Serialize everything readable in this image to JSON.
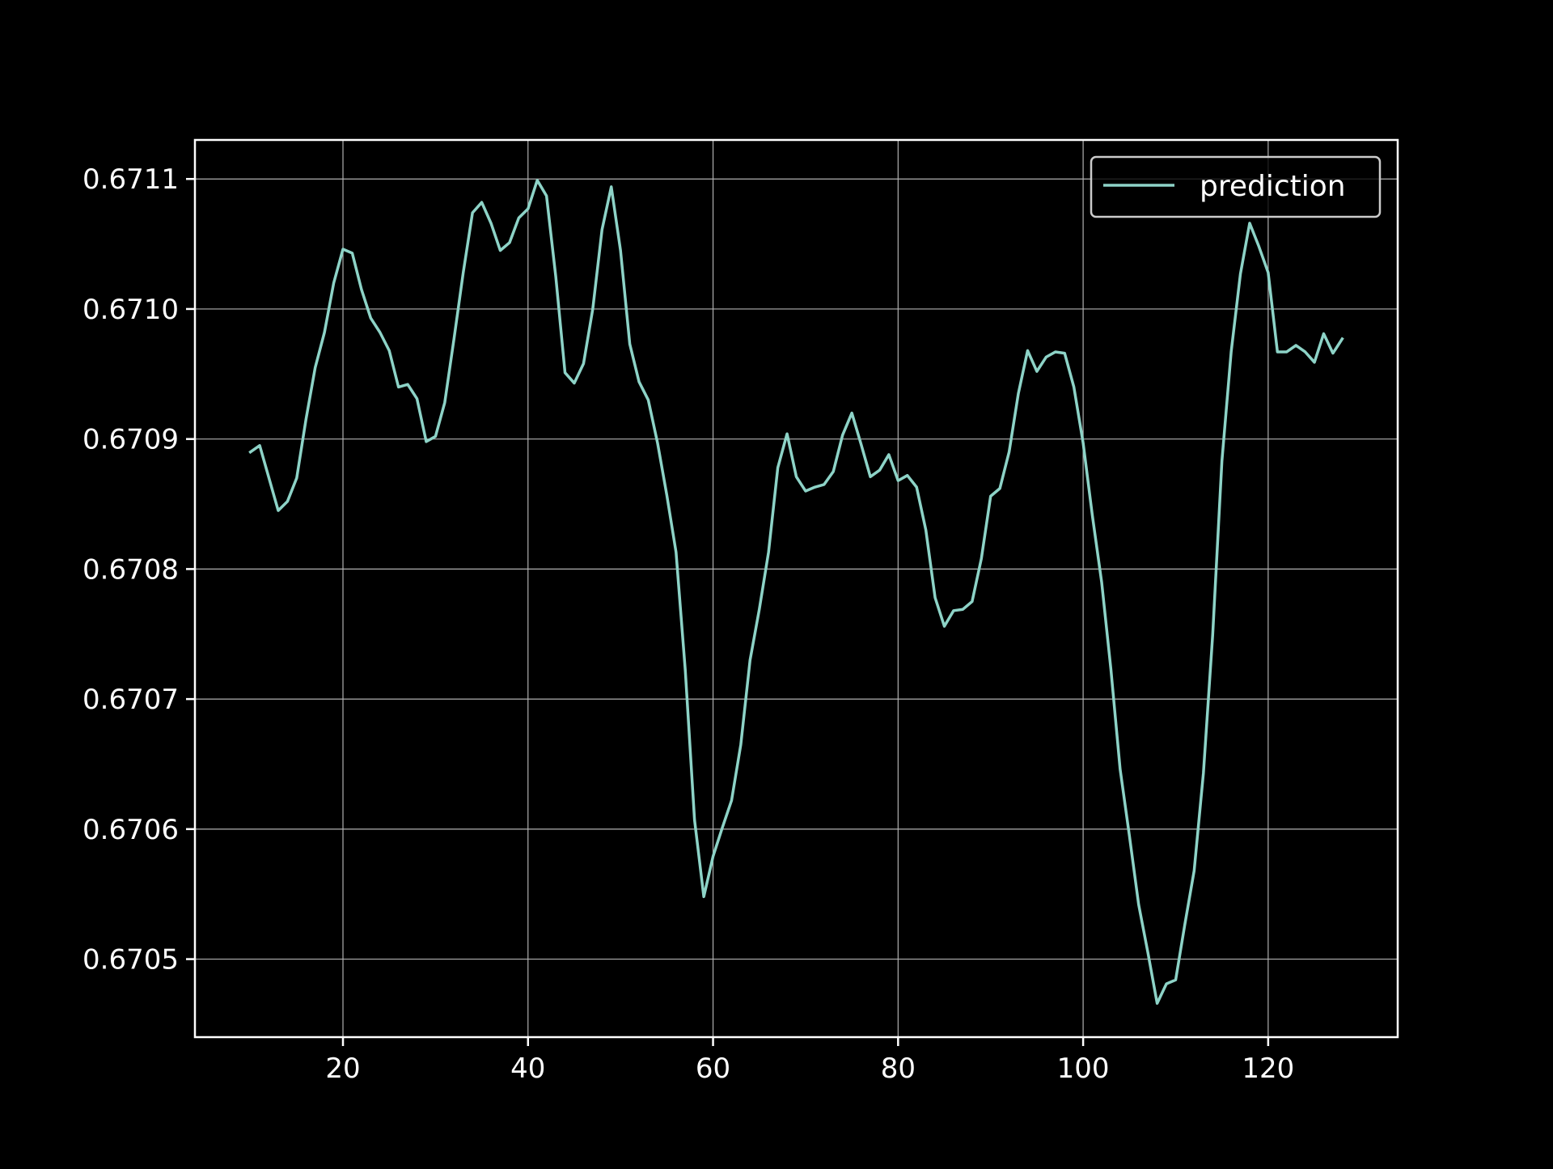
{
  "chart_data": {
    "type": "line",
    "title": "",
    "xlabel": "",
    "ylabel": "",
    "xlim": [
      4,
      134
    ],
    "ylim": [
      0.67044,
      0.67113
    ],
    "x_ticks": [
      20,
      40,
      60,
      80,
      100,
      120
    ],
    "x_tick_labels": [
      "20",
      "40",
      "60",
      "80",
      "100",
      "120"
    ],
    "y_ticks": [
      0.6705,
      0.6706,
      0.6707,
      0.6708,
      0.6709,
      0.671,
      0.6711
    ],
    "y_tick_labels": [
      "0.6705",
      "0.6706",
      "0.6707",
      "0.6708",
      "0.6709",
      "0.6710",
      "0.6711"
    ],
    "grid": true,
    "legend_position": "top-right",
    "colors": {
      "background": "#000000",
      "axes": "#ffffff",
      "grid": "#b0b0b0",
      "series": "#8dd3c7"
    },
    "series": [
      {
        "name": "prediction",
        "x": [
          10,
          11,
          12,
          13,
          14,
          15,
          16,
          17,
          18,
          19,
          20,
          21,
          22,
          23,
          24,
          25,
          26,
          27,
          28,
          29,
          30,
          31,
          32,
          33,
          34,
          35,
          36,
          37,
          38,
          39,
          40,
          41,
          42,
          43,
          44,
          45,
          46,
          47,
          48,
          49,
          50,
          51,
          52,
          53,
          54,
          55,
          56,
          57,
          58,
          59,
          60,
          61,
          62,
          63,
          64,
          65,
          66,
          67,
          68,
          69,
          70,
          71,
          72,
          73,
          74,
          75,
          76,
          77,
          78,
          79,
          80,
          81,
          82,
          83,
          84,
          85,
          86,
          87,
          88,
          89,
          90,
          91,
          92,
          93,
          94,
          95,
          96,
          97,
          98,
          99,
          100,
          101,
          102,
          103,
          104,
          105,
          106,
          107,
          108,
          109,
          110,
          111,
          112,
          113,
          114,
          115,
          116,
          117,
          118,
          119,
          120,
          121,
          122,
          123,
          124,
          125,
          126,
          127,
          128
        ],
        "values": [
          0.67089,
          0.670895,
          0.67087,
          0.670845,
          0.670852,
          0.67087,
          0.670915,
          0.670955,
          0.670982,
          0.67102,
          0.671046,
          0.671043,
          0.671015,
          0.670993,
          0.670982,
          0.670968,
          0.67094,
          0.670942,
          0.670931,
          0.670898,
          0.670902,
          0.670928,
          0.670977,
          0.671028,
          0.671074,
          0.671082,
          0.671066,
          0.671045,
          0.671051,
          0.67107,
          0.671077,
          0.671099,
          0.671087,
          0.671025,
          0.670951,
          0.670943,
          0.670958,
          0.671,
          0.671061,
          0.671094,
          0.671045,
          0.670973,
          0.670944,
          0.67093,
          0.670897,
          0.670857,
          0.670813,
          0.670722,
          0.670607,
          0.670548,
          0.670579,
          0.670601,
          0.670622,
          0.670665,
          0.67073,
          0.670769,
          0.670813,
          0.670878,
          0.670904,
          0.670871,
          0.67086,
          0.670863,
          0.670865,
          0.670875,
          0.670903,
          0.67092,
          0.670896,
          0.670871,
          0.670876,
          0.670888,
          0.670868,
          0.670872,
          0.670863,
          0.67083,
          0.670778,
          0.670756,
          0.670768,
          0.670769,
          0.670775,
          0.670808,
          0.670856,
          0.670862,
          0.67089,
          0.670935,
          0.670968,
          0.670952,
          0.670963,
          0.670967,
          0.670966,
          0.67094,
          0.670897,
          0.670841,
          0.67079,
          0.670723,
          0.670646,
          0.670595,
          0.670542,
          0.670505,
          0.670466,
          0.670481,
          0.670484,
          0.670527,
          0.670568,
          0.670643,
          0.670749,
          0.670883,
          0.670967,
          0.671027,
          0.671066,
          0.671048,
          0.671028,
          0.670967,
          0.670967,
          0.670972,
          0.670967,
          0.670959,
          0.670981,
          0.670966,
          0.670977
        ]
      }
    ]
  }
}
